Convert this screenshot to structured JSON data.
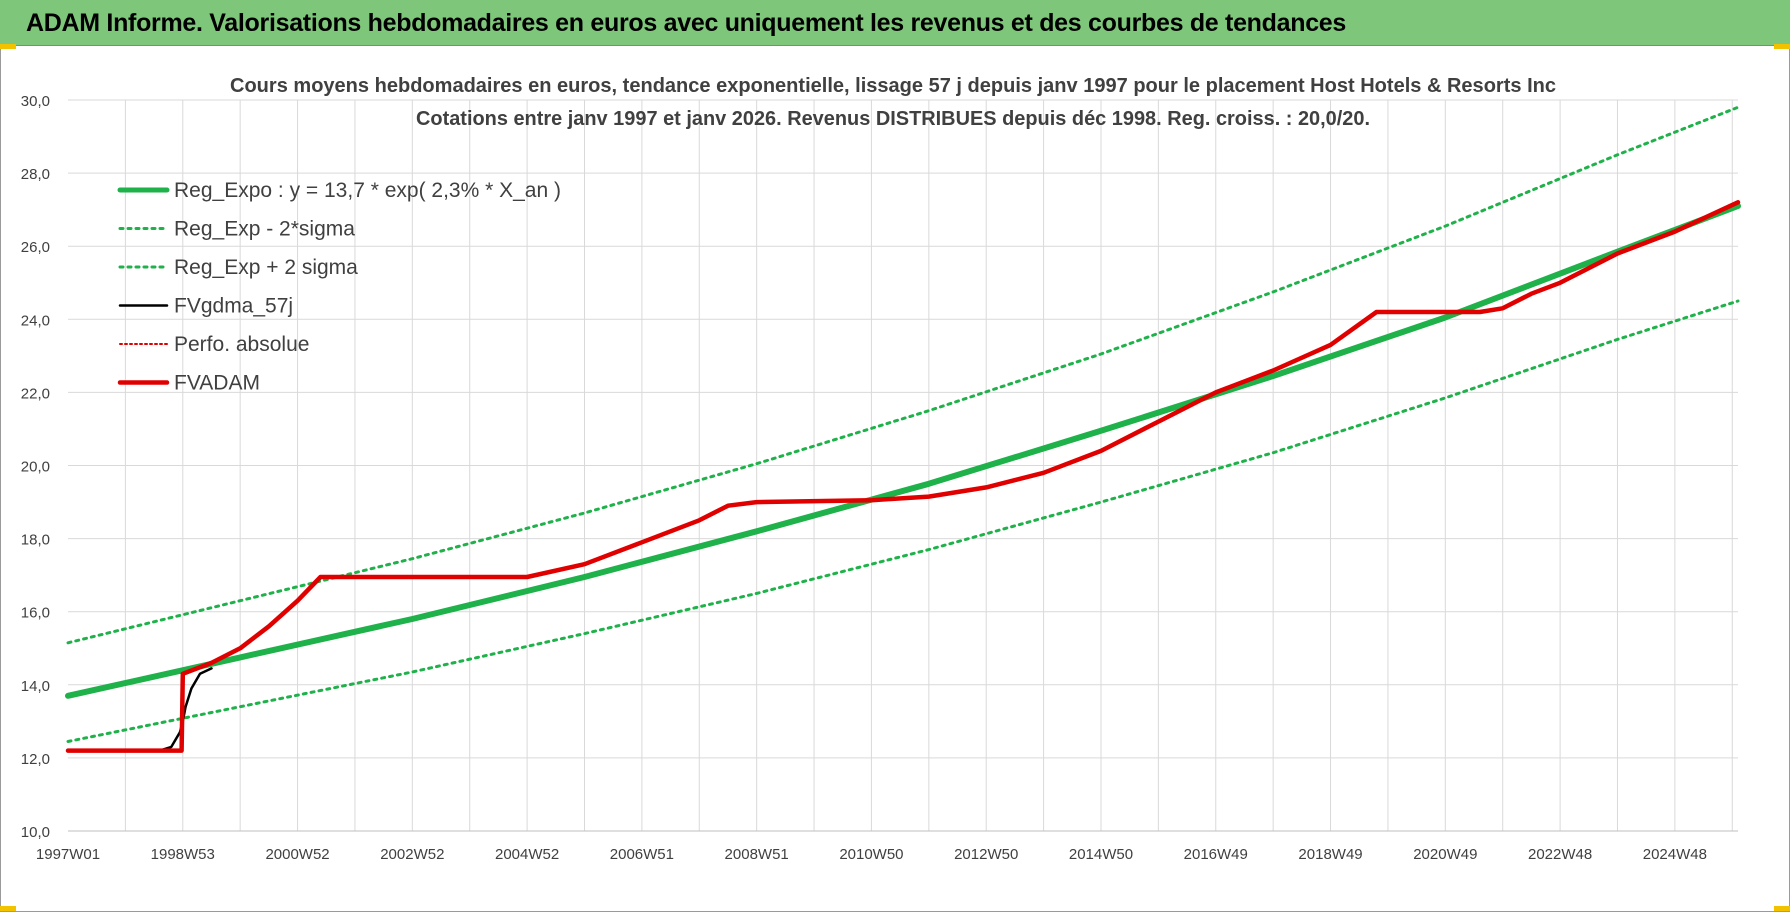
{
  "header": {
    "title": "ADAM Informe. Valorisations hebdomadaires en euros avec uniquement les revenus et des courbes de tendances"
  },
  "colors": {
    "header_bg": "#7ec77a",
    "reg_expo": "#1fb14a",
    "sigma": "#1fb14a",
    "fvgdma": "#000000",
    "perfo": "#e00000",
    "fvadam": "#e00000",
    "grid": "#d9d9d9"
  },
  "chart_data": {
    "type": "line",
    "title": "Cours moyens hebdomadaires en euros, tendance exponentielle, lissage 57 j depuis janv 1997  pour le placement Host Hotels & Resorts Inc",
    "subtitle": "Cotations entre janv 1997 et janv 2026. Revenus DISTRIBUES depuis déc 1998.  Reg. croiss. : 20,0/20.",
    "xlabel": "",
    "ylabel": "",
    "ylim": [
      10,
      30
    ],
    "xlim": [
      1997.0,
      2026.1
    ],
    "y_ticks": [
      "10,0",
      "12,0",
      "14,0",
      "16,0",
      "18,0",
      "20,0",
      "22,0",
      "24,0",
      "26,0",
      "28,0",
      "30,0"
    ],
    "x_ticks": [
      {
        "label": "1997W01",
        "year": 1997.0
      },
      {
        "label": "1998W53",
        "year": 1999.0
      },
      {
        "label": "2000W52",
        "year": 2001.0
      },
      {
        "label": "2002W52",
        "year": 2003.0
      },
      {
        "label": "2004W52",
        "year": 2005.0
      },
      {
        "label": "2006W51",
        "year": 2007.0
      },
      {
        "label": "2008W51",
        "year": 2009.0
      },
      {
        "label": "2010W50",
        "year": 2011.0
      },
      {
        "label": "2012W50",
        "year": 2013.0
      },
      {
        "label": "2014W50",
        "year": 2015.0
      },
      {
        "label": "2016W49",
        "year": 2017.0
      },
      {
        "label": "2018W49",
        "year": 2019.0
      },
      {
        "label": "2020W49",
        "year": 2021.0
      },
      {
        "label": "2022W48",
        "year": 2023.0
      },
      {
        "label": "2024W48",
        "year": 2025.0
      }
    ],
    "grid": true,
    "legend_position": "top-left",
    "series": [
      {
        "name": "Reg_Expo : y = 13,7 * exp( 2,3% *  X_an )",
        "style": "solid-thick",
        "x": [
          1997.0,
          2000.0,
          2003.0,
          2006.0,
          2009.0,
          2012.0,
          2015.0,
          2018.0,
          2021.0,
          2024.0,
          2026.1
        ],
        "y": [
          13.7,
          14.75,
          15.8,
          16.95,
          18.2,
          19.5,
          20.95,
          22.45,
          24.05,
          25.85,
          27.1
        ]
      },
      {
        "name": "Reg_Exp - 2*sigma",
        "style": "dotted",
        "x": [
          1997.0,
          2000.0,
          2003.0,
          2006.0,
          2009.0,
          2012.0,
          2015.0,
          2018.0,
          2021.0,
          2024.0,
          2026.1
        ],
        "y": [
          12.45,
          13.4,
          14.35,
          15.4,
          16.5,
          17.7,
          19.0,
          20.35,
          21.85,
          23.45,
          24.5
        ]
      },
      {
        "name": "Reg_Exp + 2 sigma",
        "style": "dotted",
        "x": [
          1997.0,
          2000.0,
          2003.0,
          2006.0,
          2009.0,
          2012.0,
          2015.0,
          2018.0,
          2021.0,
          2024.0,
          2026.1
        ],
        "y": [
          15.15,
          16.3,
          17.45,
          18.7,
          20.05,
          21.5,
          23.05,
          24.75,
          26.55,
          28.5,
          29.8
        ]
      },
      {
        "name": "FVgdma_57j",
        "style": "solid-thin",
        "x": [
          1997.0,
          1998.6,
          1998.8,
          1998.95,
          1999.0,
          1999.05,
          1999.15,
          1999.3,
          1999.5
        ],
        "y": [
          12.2,
          12.2,
          12.3,
          12.7,
          13.0,
          13.4,
          13.9,
          14.3,
          14.45
        ]
      },
      {
        "name": "Perfo. absolue",
        "style": "dotted-thin",
        "x": [
          1997.0,
          1999.0
        ],
        "y": [
          12.2,
          12.2
        ]
      },
      {
        "name": "FVADAM",
        "style": "solid-thick",
        "x": [
          1997.0,
          1998.98,
          1999.0,
          1999.5,
          2000.0,
          2000.5,
          2001.0,
          2001.4,
          2005.0,
          2006.0,
          2007.0,
          2008.0,
          2008.5,
          2009.0,
          2011.0,
          2012.0,
          2013.0,
          2014.0,
          2015.0,
          2016.0,
          2017.0,
          2018.0,
          2019.0,
          2019.8,
          2021.6,
          2022.0,
          2022.5,
          2023.0,
          2024.0,
          2025.0,
          2026.1
        ],
        "y": [
          12.2,
          12.2,
          14.3,
          14.6,
          15.0,
          15.6,
          16.3,
          16.95,
          16.95,
          17.3,
          17.9,
          18.5,
          18.9,
          19.0,
          19.05,
          19.15,
          19.4,
          19.8,
          20.4,
          21.2,
          22.0,
          22.6,
          23.3,
          24.2,
          24.2,
          24.3,
          24.7,
          25.0,
          25.8,
          26.4,
          27.2
        ]
      }
    ]
  }
}
